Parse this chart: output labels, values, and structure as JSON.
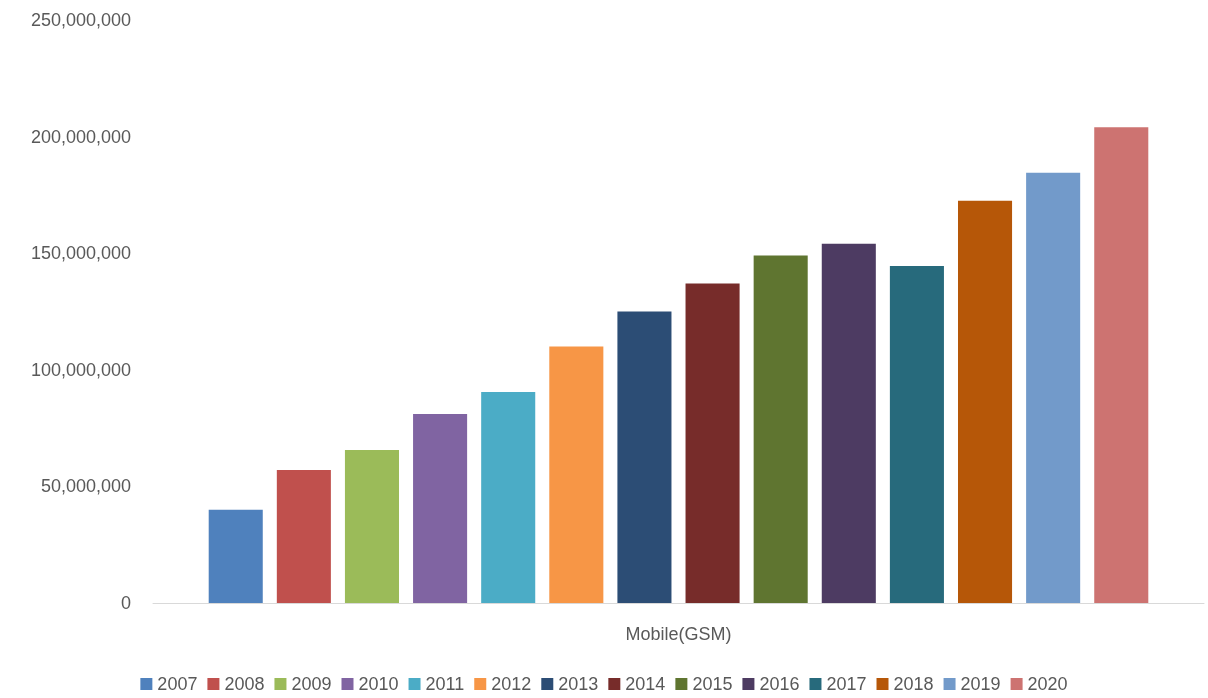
{
  "chart_data": {
    "type": "bar",
    "categories": [
      "Mobile(GSM)"
    ],
    "series": [
      {
        "name": "2007",
        "color": "#4f81bd",
        "values": [
          40000000
        ]
      },
      {
        "name": "2008",
        "color": "#c0504d",
        "values": [
          57000000
        ]
      },
      {
        "name": "2009",
        "color": "#9bbb59",
        "values": [
          65600000
        ]
      },
      {
        "name": "2010",
        "color": "#8064a2",
        "values": [
          81000000
        ]
      },
      {
        "name": "2011",
        "color": "#4bacc6",
        "values": [
          90500000
        ]
      },
      {
        "name": "2012",
        "color": "#f79646",
        "values": [
          110000000
        ]
      },
      {
        "name": "2013",
        "color": "#2c4d75",
        "values": [
          125000000
        ]
      },
      {
        "name": "2014",
        "color": "#772c2a",
        "values": [
          137000000
        ]
      },
      {
        "name": "2015",
        "color": "#5f7530",
        "values": [
          149000000
        ]
      },
      {
        "name": "2016",
        "color": "#4d3b62",
        "values": [
          154000000
        ]
      },
      {
        "name": "2017",
        "color": "#276a7c",
        "values": [
          144500000
        ]
      },
      {
        "name": "2018",
        "color": "#b65708",
        "values": [
          172500000
        ]
      },
      {
        "name": "2019",
        "color": "#729aca",
        "values": [
          184500000
        ]
      },
      {
        "name": "2020",
        "color": "#cd7371",
        "values": [
          204000000
        ]
      }
    ],
    "ylim": [
      0,
      250000000
    ],
    "yticks": [
      {
        "value": 0,
        "label": "0"
      },
      {
        "value": 50000000,
        "label": "50,000,000"
      },
      {
        "value": 100000000,
        "label": "100,000,000"
      },
      {
        "value": 150000000,
        "label": "150,000,000"
      },
      {
        "value": 200000000,
        "label": "200,000,000"
      },
      {
        "value": 250000000,
        "label": "250,000,000"
      }
    ],
    "grid": false,
    "legend": "bottom"
  }
}
